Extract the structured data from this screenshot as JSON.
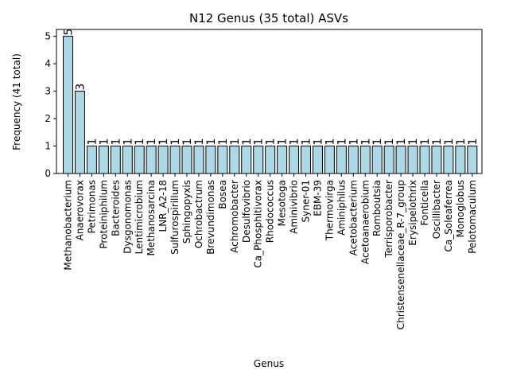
{
  "chart_data": {
    "type": "bar",
    "title": "N12 Genus (35 total) ASVs",
    "xlabel": "Genus",
    "ylabel": "Frequency (41 total)",
    "ylim": [
      0,
      5.25
    ],
    "yticks": [
      0,
      1,
      2,
      3,
      4,
      5
    ],
    "grid": false,
    "bar_color": "#add8e6",
    "categories": [
      "Methanobacterium",
      "Anaerovorax",
      "Petrimonas",
      "Proteiniphilum",
      "Bacteroides",
      "Dysgonomonas",
      "Lentimicrobium",
      "Methanosarcina",
      "LNR_A2-18",
      "Sulfurospirillum",
      "Sphingopyxis",
      "Ochrobactrum",
      "Brevundimonas",
      "Bosea",
      "Achromobacter",
      "Desulfovibrio",
      "Ca_Phosphitivorax",
      "Rhodococcus",
      "Mesotoga",
      "Aminivibrio",
      "Syner-01",
      "EBM-39",
      "Thermovirga",
      "Aminiphilus",
      "Acetobacterium",
      "Acetoanaerobium",
      "Romboutsia",
      "Terrisporobacter",
      "Christensenellaceae_R-7_group",
      "Erysipelothrix",
      "Fonticella",
      "Oscillibacter",
      "Ca_Soleaferrea",
      "Monoglobus",
      "Pelotomaculum"
    ],
    "values": [
      5,
      3,
      1,
      1,
      1,
      1,
      1,
      1,
      1,
      1,
      1,
      1,
      1,
      1,
      1,
      1,
      1,
      1,
      1,
      1,
      1,
      1,
      1,
      1,
      1,
      1,
      1,
      1,
      1,
      1,
      1,
      1,
      1,
      1,
      1
    ]
  }
}
